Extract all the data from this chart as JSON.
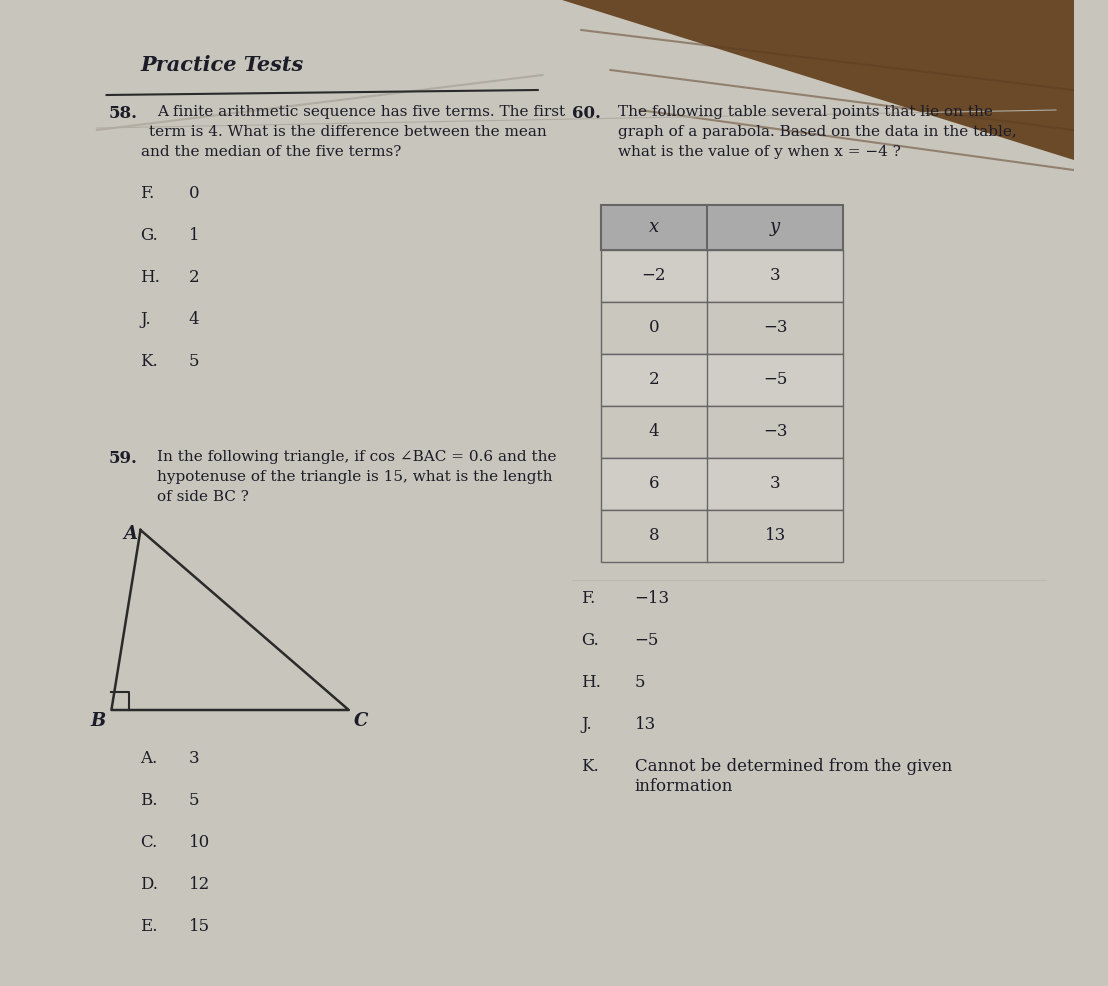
{
  "bg_color": "#c8c5bc",
  "paper_color": "#d9d6ce",
  "header": "Practice Tests",
  "q58_num": "58.",
  "q58_text_line1": "A finite arithmetic sequence has five terms. The first",
  "q58_text_line2": "term is 4. What is the difference between the mean",
  "q58_text_line3": "and the median of the five terms?",
  "q58_choices": [
    [
      "F.",
      "0"
    ],
    [
      "G.",
      "1"
    ],
    [
      "H.",
      "2"
    ],
    [
      "J.",
      "4"
    ],
    [
      "K.",
      "5"
    ]
  ],
  "q59_num": "59.",
  "q59_text_line1": "In the following triangle, if cos ∠BAC = 0.6 and the",
  "q59_text_line2": "hypotenuse of the triangle is 15, what is the length",
  "q59_text_line3": "of side BC ?",
  "q59_choices": [
    [
      "A.",
      "3"
    ],
    [
      "B.",
      "5"
    ],
    [
      "C.",
      "10"
    ],
    [
      "D.",
      "12"
    ],
    [
      "E.",
      "15"
    ]
  ],
  "q60_num": "60.",
  "q60_text_line1": "The following table several points that lie on the",
  "q60_text_line2": "graph of a parabola. Based on the data in the table,",
  "q60_text_line3": "what is the value of y when x = −4 ?",
  "table_headers": [
    "x",
    "y"
  ],
  "table_data": [
    [
      "−2",
      "3"
    ],
    [
      "0",
      "−3"
    ],
    [
      "2",
      "−5"
    ],
    [
      "4",
      "−3"
    ],
    [
      "6",
      "3"
    ],
    [
      "8",
      "13"
    ]
  ],
  "q60_choices": [
    [
      "F.",
      "−13"
    ],
    [
      "G.",
      "−5"
    ],
    [
      "H.",
      "5"
    ],
    [
      "J.",
      "13"
    ],
    [
      "K.",
      "Cannot be determined from the given"
    ]
  ],
  "q60_choice_k2": "information",
  "text_color": "#1c1c28",
  "line_color": "#2a2a2a",
  "table_header_bg": "#aaaaaa",
  "table_row_bg1": "#d0cdc6",
  "table_row_bg2": "#cac7bf",
  "table_border_color": "#666666",
  "fold_line_color": "#b0aca2"
}
